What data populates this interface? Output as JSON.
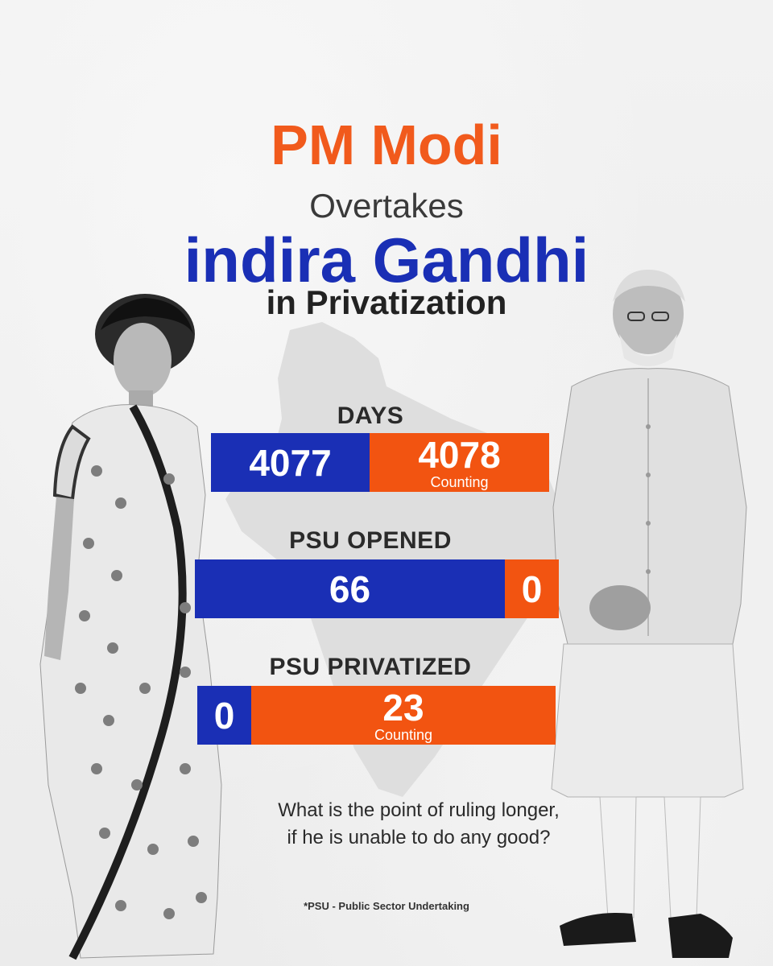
{
  "headline": {
    "line1": "PM Modi",
    "line2": "Overtakes",
    "line3": "indira Gandhi",
    "line4": "in Privatization"
  },
  "stats": [
    {
      "label": "DAYS",
      "blue_value": "4077",
      "orange_value": "4078",
      "orange_sub": "Counting"
    },
    {
      "label": "PSU OPENED",
      "blue_value": "66",
      "orange_value": "0"
    },
    {
      "label": "PSU PRIVATIZED",
      "blue_value": "0",
      "orange_value": "23",
      "orange_sub": "Counting"
    }
  ],
  "question": {
    "line1": "What is the point of ruling longer,",
    "line2": "if he is unable to do any good?"
  },
  "footnote": "*PSU - Public Sector Undertaking",
  "colors": {
    "blue": "#1a2fb5",
    "orange": "#f25411",
    "title_orange": "#f15a1c"
  }
}
